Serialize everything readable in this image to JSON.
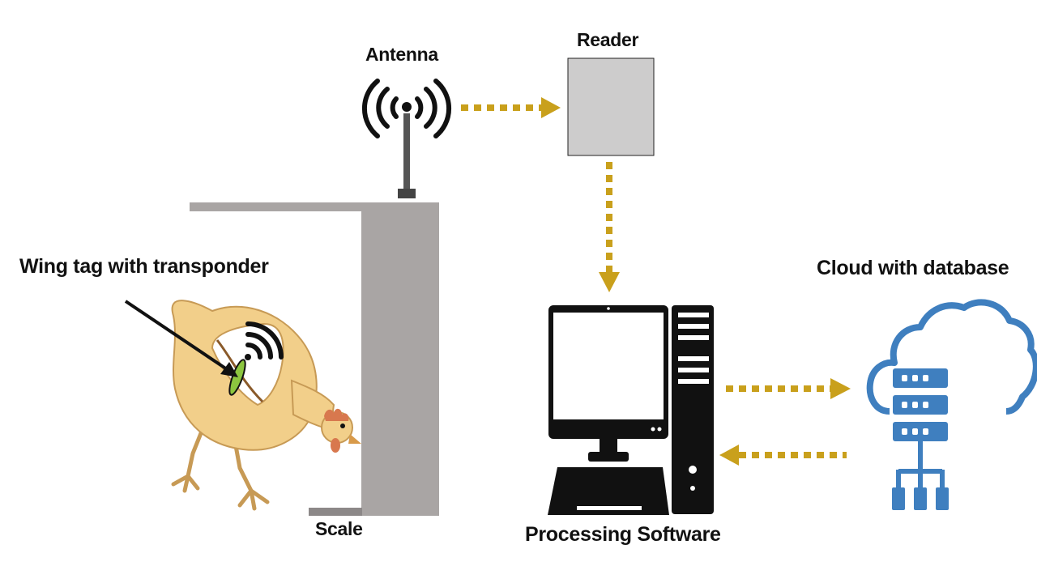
{
  "labels": {
    "antenna": "Antenna",
    "reader": "Reader",
    "wing_tag": "Wing tag with transponder",
    "cloud": "Cloud with database",
    "scale": "Scale",
    "processing": "Processing Software"
  },
  "colors": {
    "arrow": "#c9a01c",
    "reader_box": "#cdcccc",
    "scale_frame": "#a9a5a4",
    "cloud_icon": "#3f7fbf",
    "computer": "#111111",
    "chicken_body": "#f2cf8a",
    "chicken_outline": "#c79a55",
    "comb": "#d8784e",
    "tag": "#8cc63f",
    "text": "#111111"
  },
  "icons": [
    "antenna-icon",
    "reader-box",
    "computer-icon",
    "cloud-database-icon",
    "chicken-illustration",
    "wifi-signal-icon"
  ]
}
